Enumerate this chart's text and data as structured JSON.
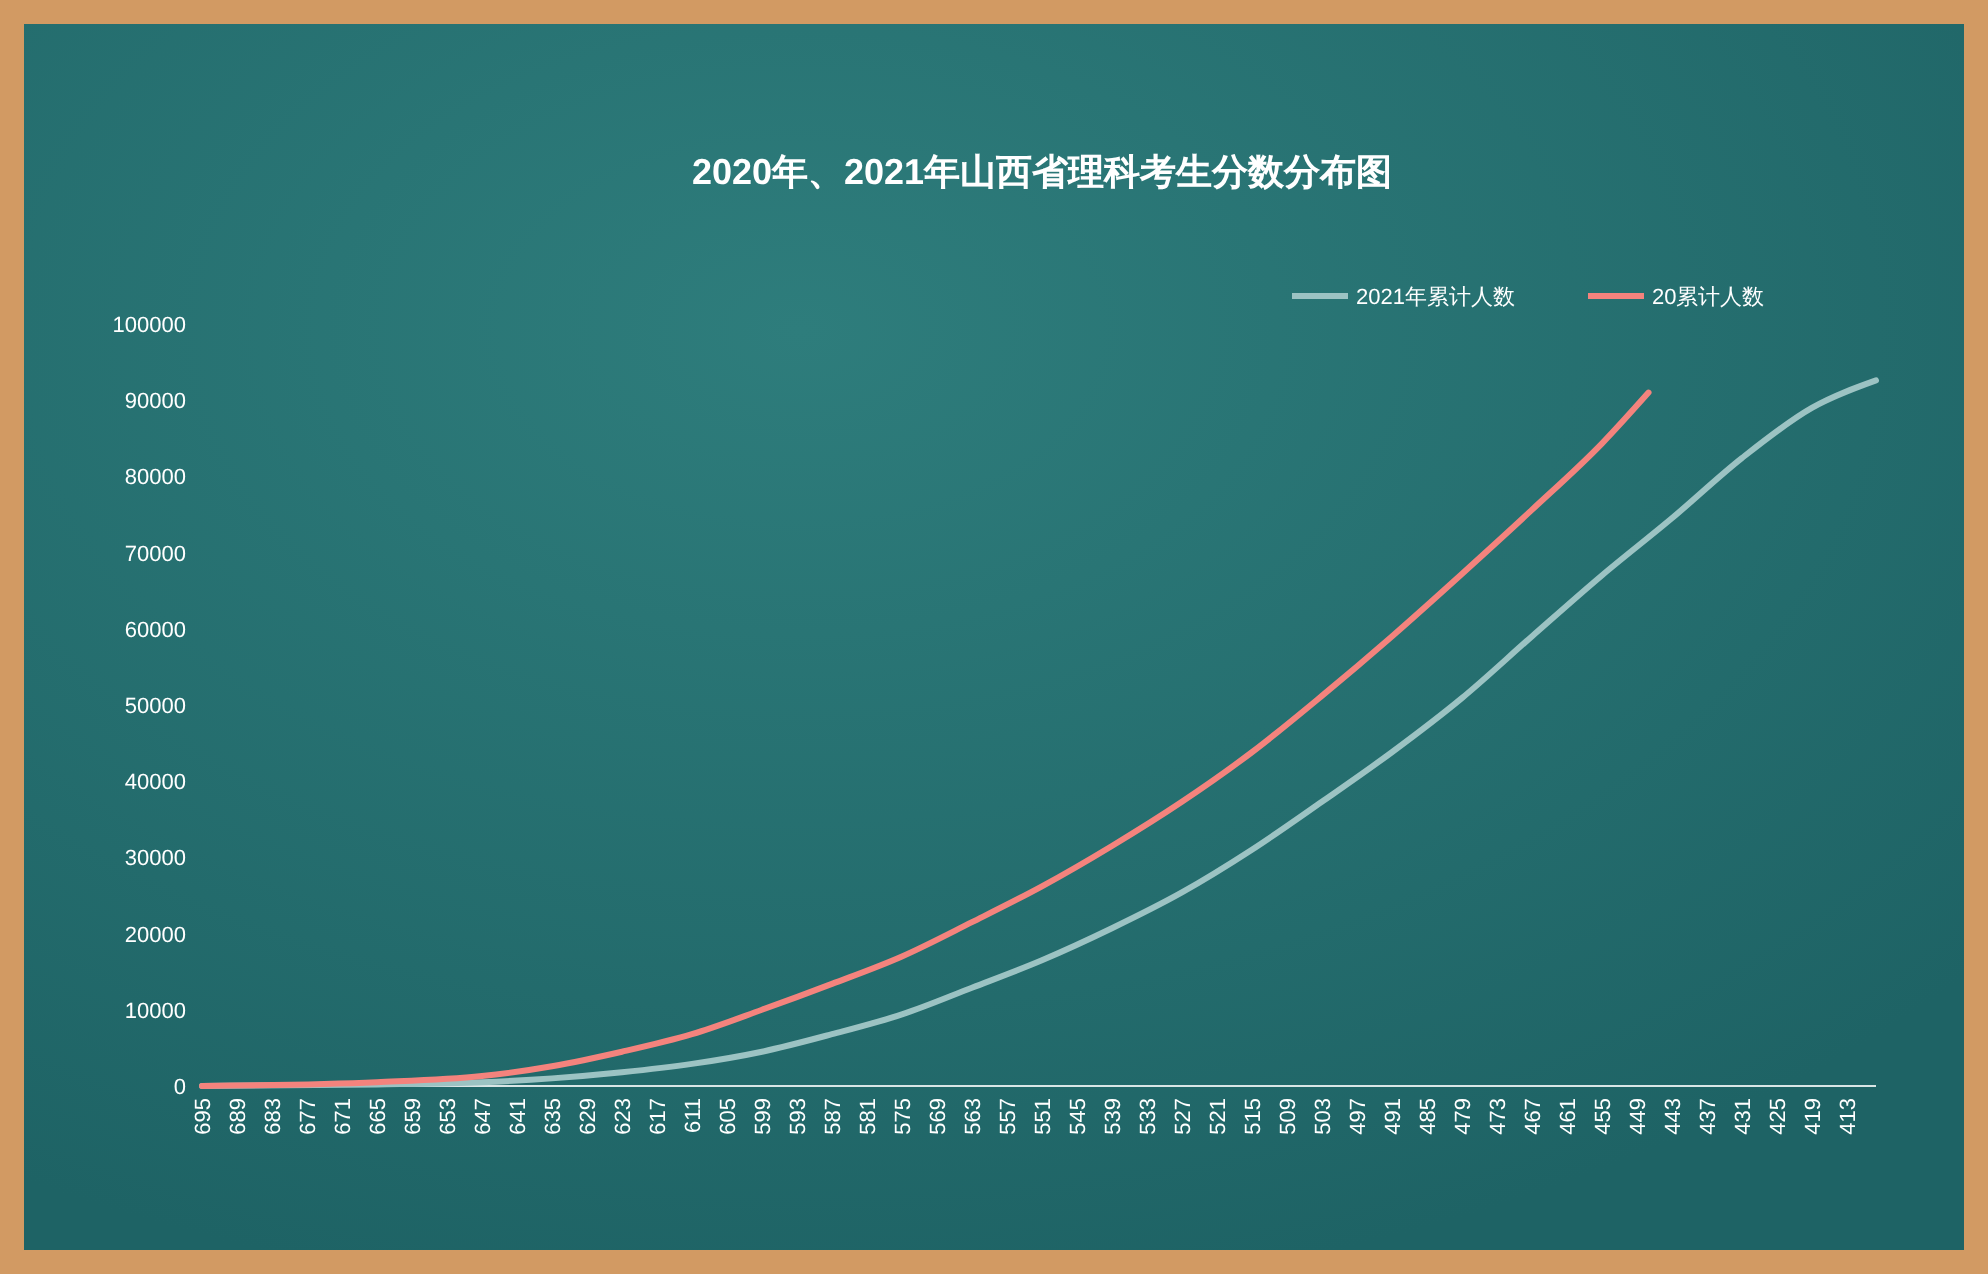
{
  "chart_data": {
    "type": "line",
    "title": "2020年、2021年山西省理科考生分数分布图",
    "xlim": [
      695,
      408
    ],
    "xticks": [
      695,
      689,
      683,
      677,
      671,
      665,
      659,
      653,
      647,
      641,
      635,
      629,
      623,
      617,
      611,
      605,
      599,
      593,
      587,
      581,
      575,
      569,
      563,
      557,
      551,
      545,
      539,
      533,
      527,
      521,
      515,
      509,
      503,
      497,
      491,
      485,
      479,
      473,
      467,
      461,
      455,
      449,
      443,
      437,
      431,
      425,
      419,
      413
    ],
    "ylim": [
      0,
      100000
    ],
    "yticks": [
      0,
      10000,
      20000,
      30000,
      40000,
      50000,
      60000,
      70000,
      80000,
      90000,
      100000
    ],
    "grid": false,
    "legend": "top right",
    "line_style": "solid",
    "marker": "none",
    "series": [
      {
        "name": "2021年累计人数",
        "color": "#9cc3c3",
        "x": [
          695,
          665,
          647,
          635,
          623,
          611,
          599,
          587,
          575,
          563,
          551,
          539,
          527,
          515,
          503,
          491,
          479,
          467,
          455,
          443,
          431,
          419,
          408
        ],
        "values": [
          0,
          200,
          500,
          1000,
          1800,
          2900,
          4500,
          6800,
          9400,
          12900,
          16500,
          20700,
          25400,
          31000,
          37300,
          43800,
          50900,
          59000,
          67000,
          74500,
          82400,
          89000,
          92600
        ]
      },
      {
        "name": "20累计人数",
        "color": "#f4837d",
        "x": [
          695,
          665,
          647,
          635,
          623,
          611,
          599,
          587,
          575,
          563,
          551,
          539,
          527,
          515,
          503,
          491,
          479,
          467,
          455,
          447
        ],
        "values": [
          0,
          500,
          1300,
          2600,
          4500,
          6800,
          10000,
          13400,
          17000,
          21500,
          26200,
          31500,
          37300,
          43800,
          51200,
          59000,
          67200,
          75600,
          84300,
          91000
        ]
      }
    ]
  }
}
